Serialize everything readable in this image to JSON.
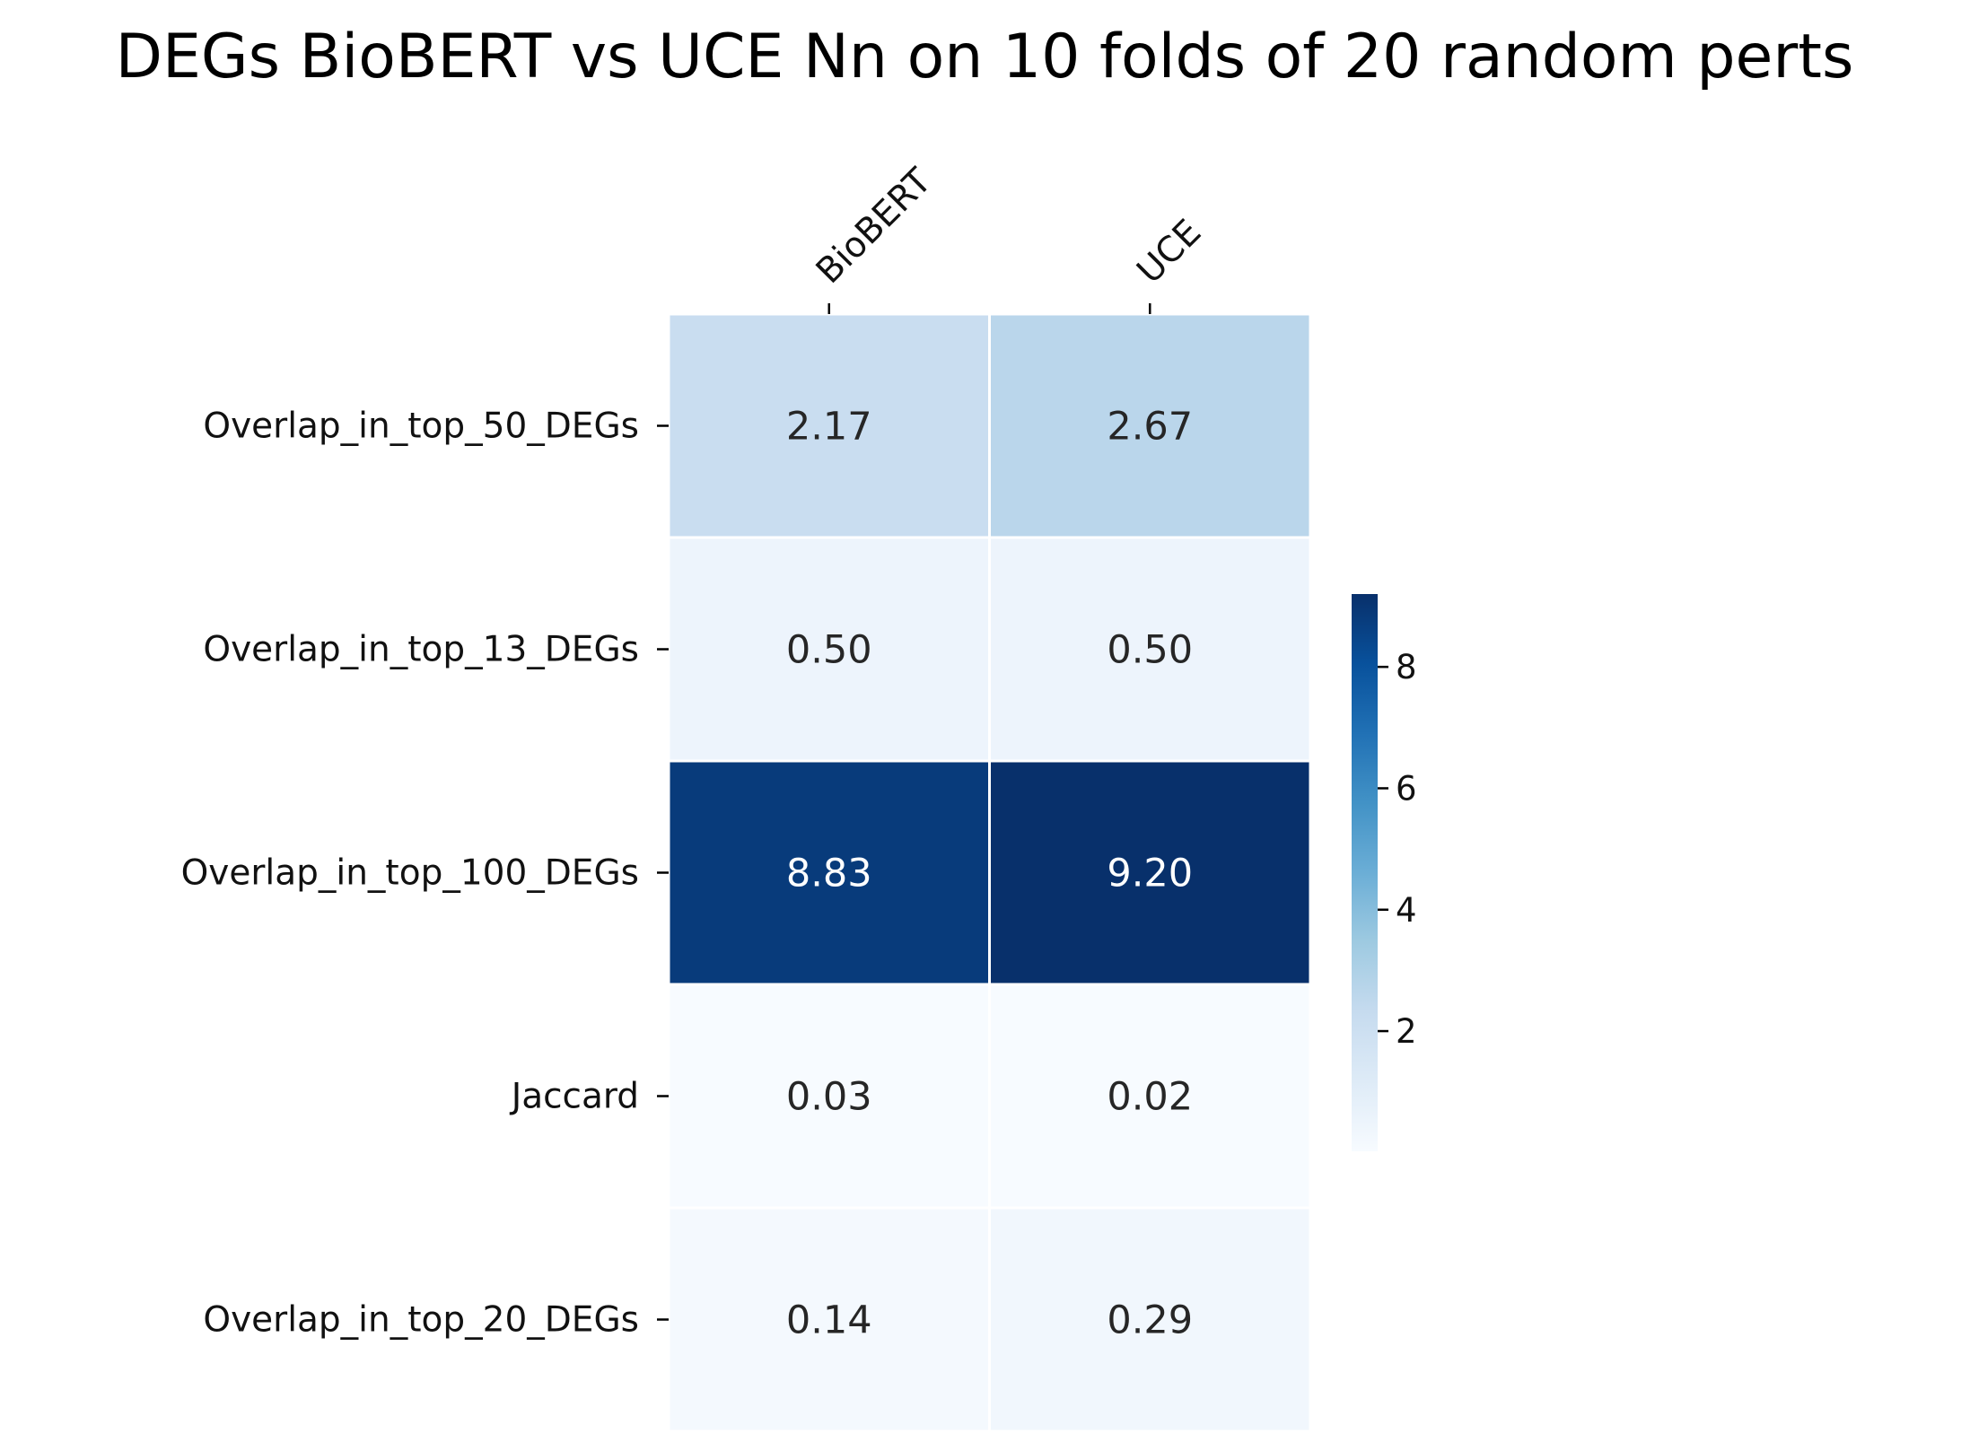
{
  "chart_data": {
    "type": "heatmap",
    "title": "DEGs BioBERT vs UCE Nn on 10 folds of 20 random perts",
    "columns": [
      "BioBERT",
      "UCE"
    ],
    "rows": [
      "Overlap_in_top_50_DEGs",
      "Overlap_in_top_13_DEGs",
      "Overlap_in_top_100_DEGs",
      "Jaccard",
      "Overlap_in_top_20_DEGs"
    ],
    "values": [
      [
        2.17,
        2.67
      ],
      [
        0.5,
        0.5
      ],
      [
        8.83,
        9.2
      ],
      [
        0.03,
        0.02
      ],
      [
        0.14,
        0.29
      ]
    ],
    "value_labels": [
      [
        "2.17",
        "2.67"
      ],
      [
        "0.50",
        "0.50"
      ],
      [
        "8.83",
        "9.20"
      ],
      [
        "0.03",
        "0.02"
      ],
      [
        "0.14",
        "0.29"
      ]
    ],
    "colormap": "Blues",
    "vmin": 0.02,
    "vmax": 9.2,
    "colorbar_ticks": [
      2,
      4,
      6,
      8
    ],
    "colorbar_placement": "right",
    "x_axis_position": "top",
    "xlabel": "",
    "ylabel": "",
    "grid": false,
    "cell_border_color": "#ffffff",
    "dark_text_color": "#262626",
    "light_text_color": "#ffffff"
  }
}
